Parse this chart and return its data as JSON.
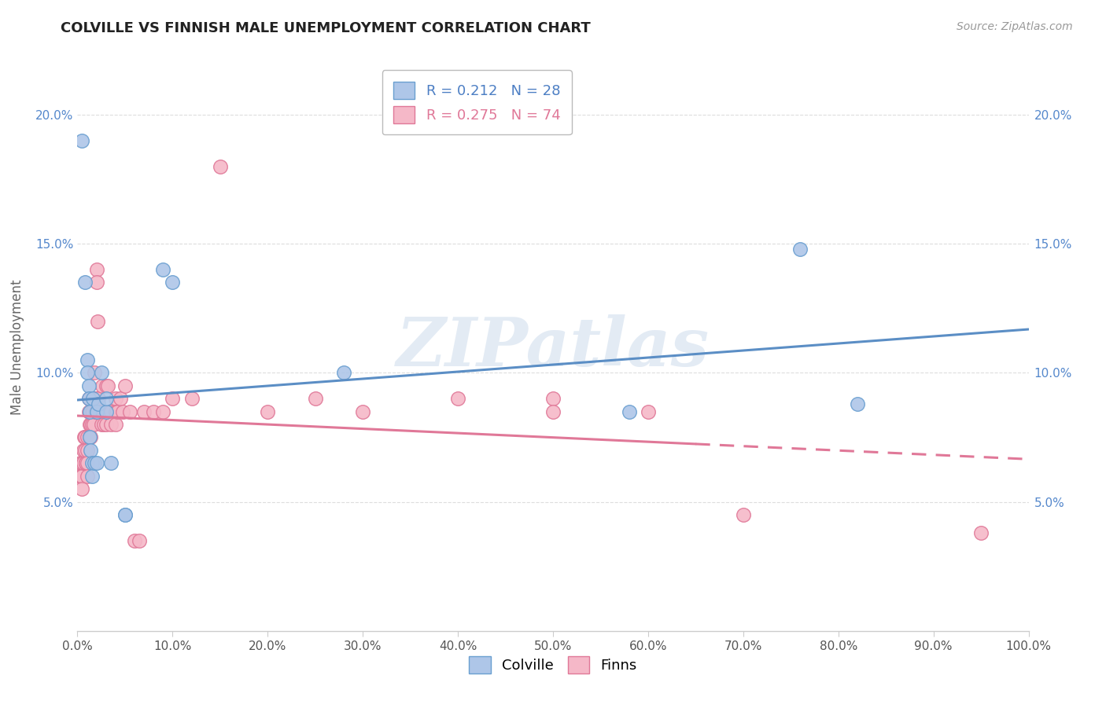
{
  "title": "COLVILLE VS FINNISH MALE UNEMPLOYMENT CORRELATION CHART",
  "source": "Source: ZipAtlas.com",
  "ylabel": "Male Unemployment",
  "xlim": [
    0,
    1.0
  ],
  "ylim": [
    0.0,
    0.22
  ],
  "xticks": [
    0.0,
    0.1,
    0.2,
    0.3,
    0.4,
    0.5,
    0.6,
    0.7,
    0.8,
    0.9,
    1.0
  ],
  "yticks": [
    0.05,
    0.1,
    0.15,
    0.2
  ],
  "colville_color": "#aec6e8",
  "colville_edge": "#6a9fd0",
  "finns_color": "#f5b8c8",
  "finns_edge": "#e07898",
  "colville_R": 0.212,
  "colville_N": 28,
  "finns_R": 0.275,
  "finns_N": 74,
  "colville_line_color": "#5b8ec5",
  "finns_line_color": "#e07898",
  "background_color": "#ffffff",
  "grid_color": "#dddddd",
  "watermark_text": "ZIPatlas",
  "watermark_color": "#c8d8ea",
  "watermark_alpha": 0.5,
  "legend_text_blue": "#4d7fc4",
  "legend_text_pink": "#e07898",
  "colville_x": [
    0.005,
    0.008,
    0.01,
    0.01,
    0.012,
    0.012,
    0.013,
    0.013,
    0.014,
    0.015,
    0.015,
    0.016,
    0.018,
    0.02,
    0.02,
    0.022,
    0.025,
    0.03,
    0.03,
    0.035,
    0.05,
    0.05,
    0.09,
    0.1,
    0.28,
    0.58,
    0.76,
    0.82
  ],
  "colville_y": [
    0.19,
    0.135,
    0.105,
    0.1,
    0.095,
    0.09,
    0.085,
    0.075,
    0.07,
    0.065,
    0.06,
    0.09,
    0.065,
    0.085,
    0.065,
    0.088,
    0.1,
    0.085,
    0.09,
    0.065,
    0.045,
    0.045,
    0.14,
    0.135,
    0.1,
    0.085,
    0.148,
    0.088
  ],
  "finns_x": [
    0.003,
    0.003,
    0.004,
    0.005,
    0.005,
    0.005,
    0.006,
    0.006,
    0.007,
    0.008,
    0.008,
    0.009,
    0.009,
    0.01,
    0.01,
    0.01,
    0.01,
    0.012,
    0.012,
    0.013,
    0.013,
    0.014,
    0.014,
    0.015,
    0.015,
    0.016,
    0.016,
    0.017,
    0.018,
    0.018,
    0.019,
    0.02,
    0.02,
    0.02,
    0.021,
    0.022,
    0.023,
    0.025,
    0.025,
    0.026,
    0.027,
    0.028,
    0.03,
    0.03,
    0.03,
    0.032,
    0.033,
    0.035,
    0.035,
    0.04,
    0.04,
    0.04,
    0.042,
    0.045,
    0.048,
    0.05,
    0.055,
    0.06,
    0.065,
    0.07,
    0.08,
    0.09,
    0.1,
    0.12,
    0.15,
    0.2,
    0.25,
    0.3,
    0.4,
    0.5,
    0.5,
    0.6,
    0.7,
    0.95
  ],
  "finns_y": [
    0.065,
    0.06,
    0.06,
    0.065,
    0.06,
    0.055,
    0.07,
    0.065,
    0.075,
    0.075,
    0.07,
    0.065,
    0.065,
    0.075,
    0.07,
    0.065,
    0.06,
    0.09,
    0.085,
    0.08,
    0.075,
    0.08,
    0.075,
    0.085,
    0.08,
    0.09,
    0.085,
    0.08,
    0.1,
    0.09,
    0.085,
    0.14,
    0.135,
    0.09,
    0.12,
    0.09,
    0.085,
    0.085,
    0.08,
    0.095,
    0.085,
    0.08,
    0.095,
    0.085,
    0.08,
    0.095,
    0.085,
    0.085,
    0.08,
    0.09,
    0.085,
    0.08,
    0.085,
    0.09,
    0.085,
    0.095,
    0.085,
    0.035,
    0.035,
    0.085,
    0.085,
    0.085,
    0.09,
    0.09,
    0.18,
    0.085,
    0.09,
    0.085,
    0.09,
    0.09,
    0.085,
    0.085,
    0.045,
    0.038
  ]
}
